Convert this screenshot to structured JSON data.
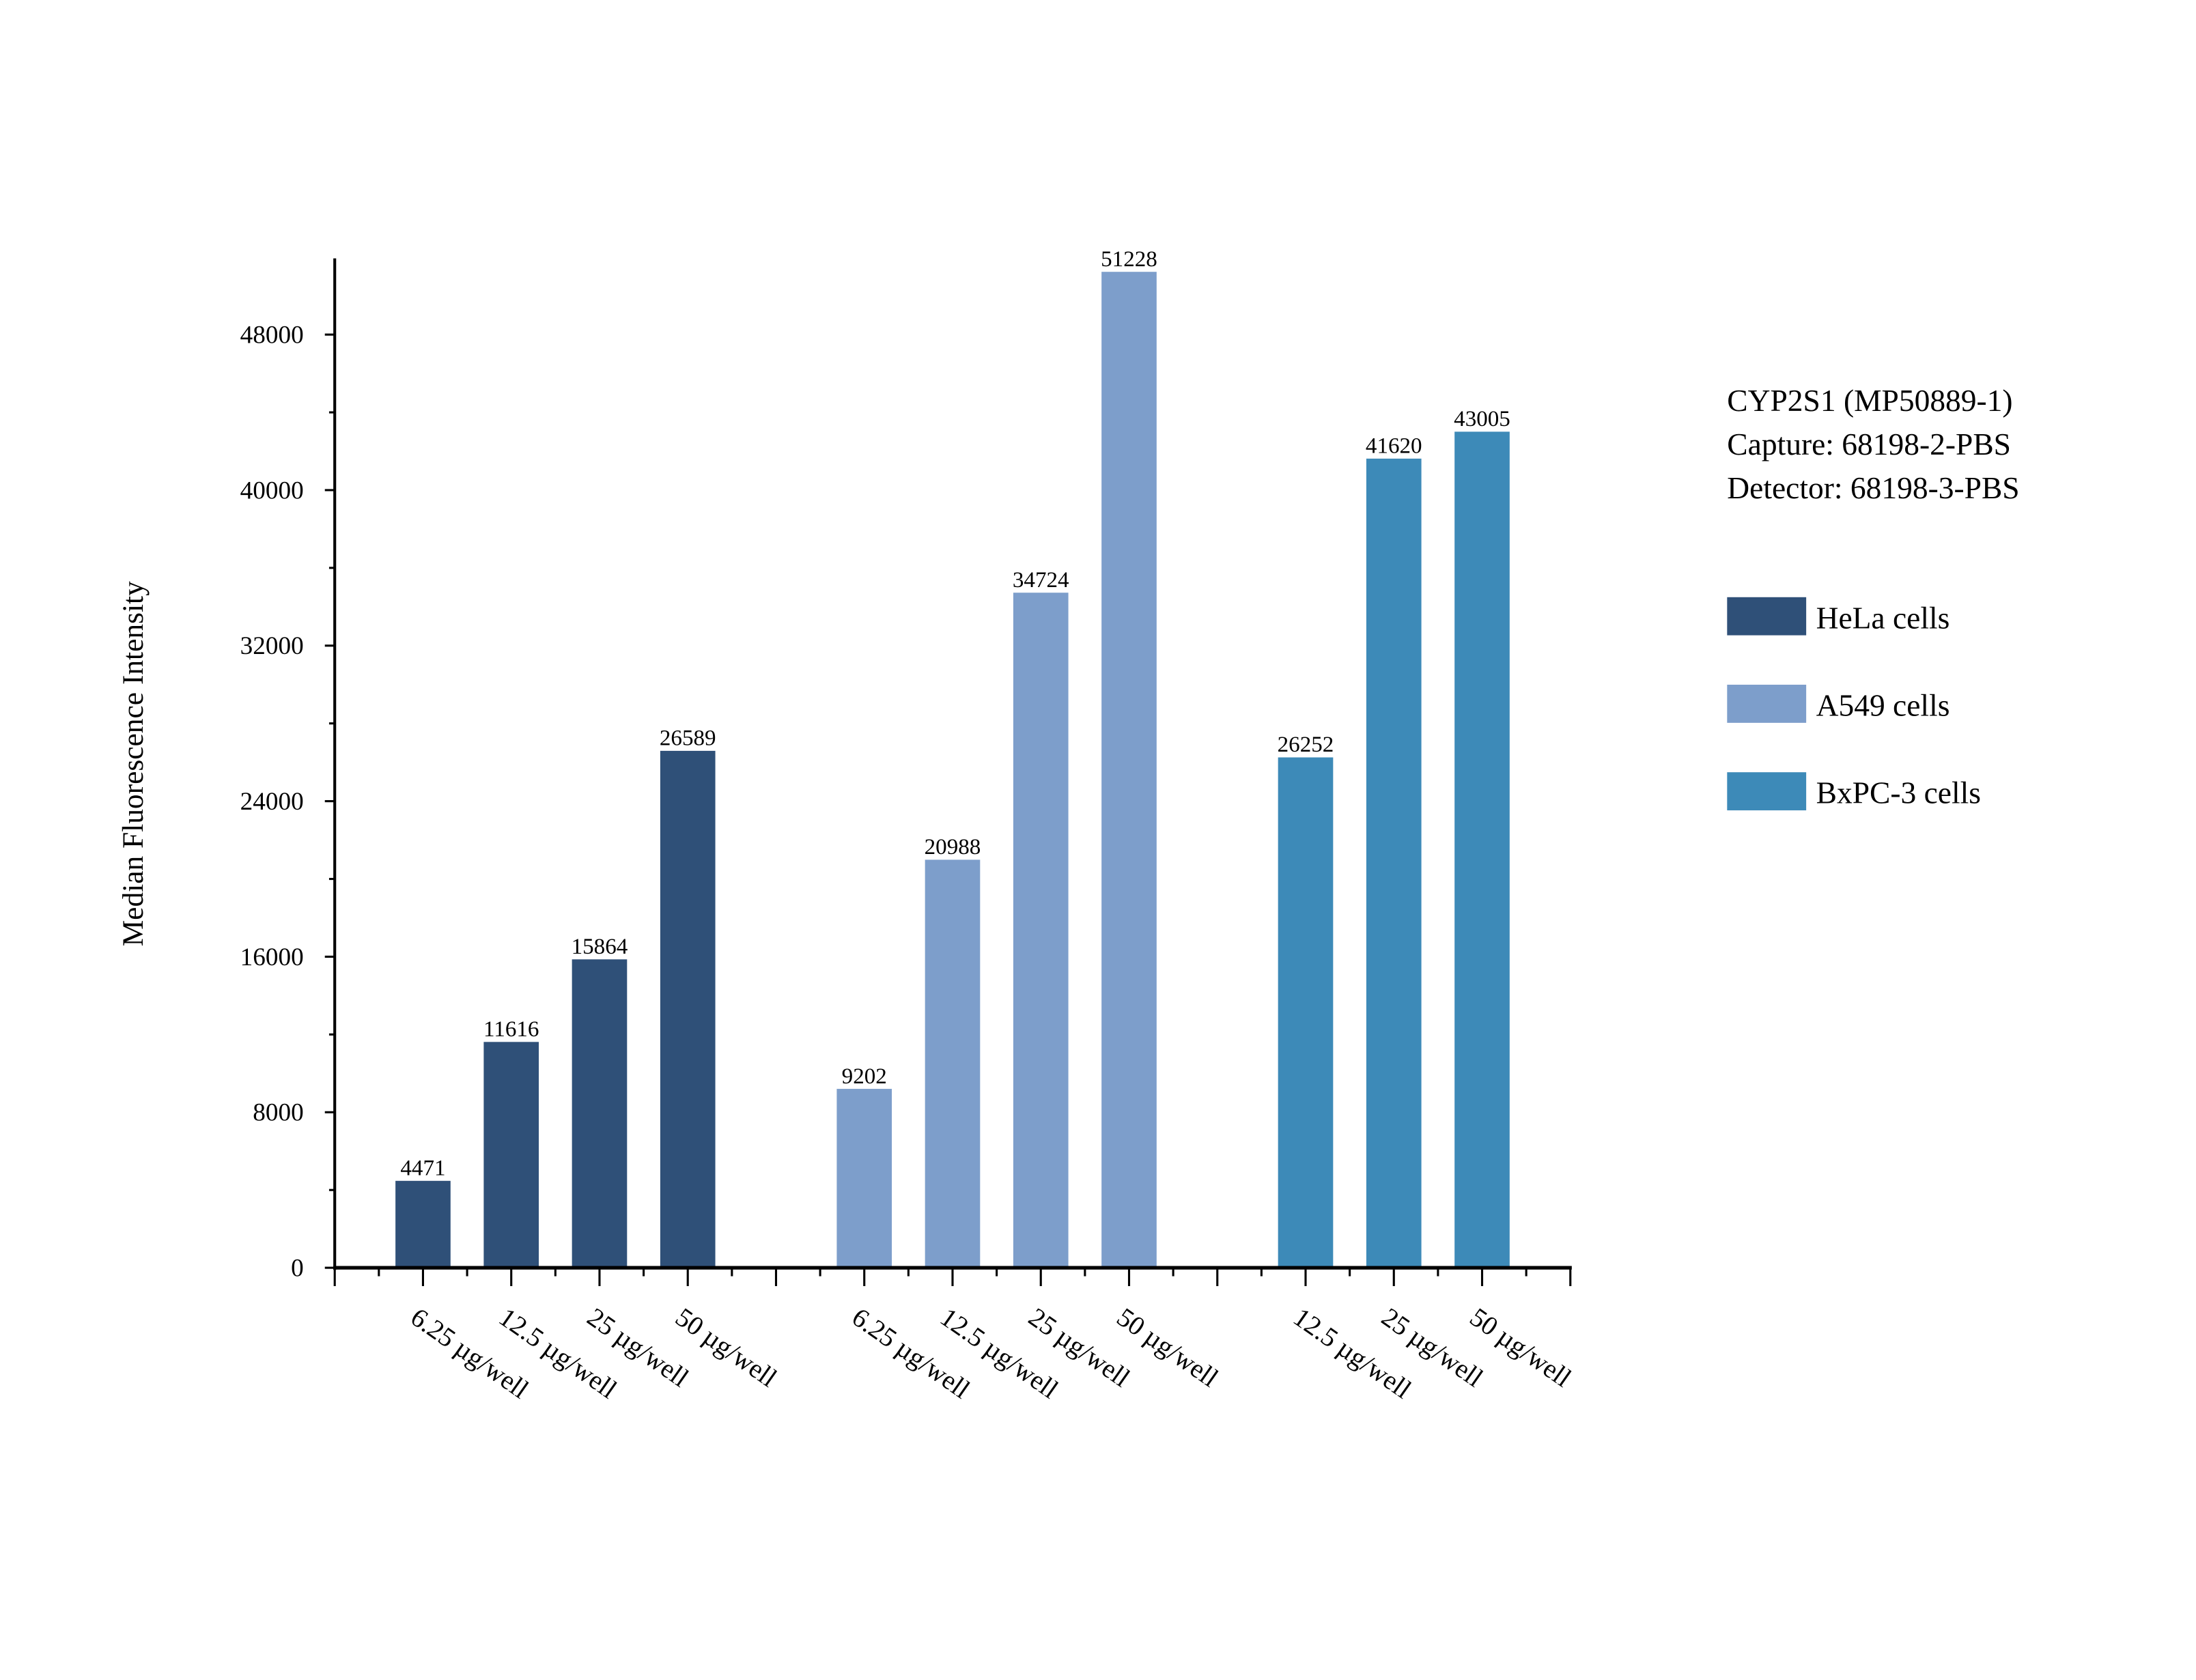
{
  "chart_data": {
    "type": "bar",
    "title": "",
    "xlabel": "",
    "ylabel": "Median Fluorescence Intensity",
    "ylim": [
      0,
      52000
    ],
    "yticks": [
      0,
      8000,
      16000,
      24000,
      32000,
      40000,
      48000
    ],
    "grid": false,
    "legend_position": "right",
    "annotation": [
      "CYP2S1 (MP50889-1)",
      "Capture: 68198-2-PBS",
      "Detector: 68198-3-PBS"
    ],
    "series": [
      {
        "name": "HeLa cells",
        "color": "#2f5078",
        "categories": [
          "6.25 µg/well",
          "12.5 µg/well",
          "25 µg/well",
          "50 µg/well"
        ],
        "values": [
          4471,
          11616,
          15864,
          26589
        ]
      },
      {
        "name": "A549 cells",
        "color": "#7d9ecb",
        "categories": [
          "6.25 µg/well",
          "12.5 µg/well",
          "25 µg/well",
          "50 µg/well"
        ],
        "values": [
          9202,
          20988,
          34724,
          51228
        ]
      },
      {
        "name": "BxPC-3 cells",
        "color": "#3d8ab8",
        "categories": [
          "12.5 µg/well",
          "25 µg/well",
          "50 µg/well"
        ],
        "values": [
          26252,
          41620,
          43005
        ]
      }
    ]
  }
}
